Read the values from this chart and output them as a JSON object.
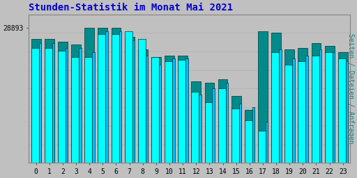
{
  "title": "Stunden-Statistik im Monat Mai 2021",
  "title_color": "#0000CC",
  "ylabel_right": "Seiten / Dateien / Anfragen",
  "ylabel_color": "#008888",
  "background_color": "#C0C0C0",
  "plot_bg_color": "#C0C0C0",
  "x_labels": [
    "0",
    "1",
    "2",
    "3",
    "4",
    "5",
    "6",
    "7",
    "8",
    "9",
    "10",
    "11",
    "12",
    "13",
    "14",
    "15",
    "16",
    "17",
    "18",
    "19",
    "20",
    "21",
    "22",
    "23"
  ],
  "seiten": [
    27600,
    27600,
    27400,
    27000,
    27000,
    28500,
    28500,
    28700,
    28200,
    27000,
    26700,
    26800,
    24700,
    24000,
    24900,
    23600,
    22800,
    22100,
    27300,
    26500,
    26700,
    27100,
    27300,
    26900
  ],
  "dateien": [
    28200,
    28200,
    28000,
    27800,
    28893,
    28893,
    28893,
    28300,
    27500,
    27000,
    27100,
    27100,
    25400,
    25300,
    25500,
    24400,
    23500,
    28700,
    28600,
    27500,
    27600,
    27900,
    27700,
    27300
  ],
  "anfragen": [
    27900,
    27900,
    27600,
    27600,
    27300,
    28700,
    28700,
    28100,
    27100,
    26500,
    26900,
    26900,
    24500,
    24900,
    25300,
    23900,
    23700,
    22700,
    27500,
    26900,
    27100,
    27500,
    27300,
    26700
  ],
  "color_seiten": "#00FFFF",
  "color_dateien": "#008B8B",
  "color_anfragen": "#00BFFF",
  "bar_edge_color": "#003333",
  "ylim_min": 20000,
  "ylim_max": 29800,
  "ytick_val": 28893,
  "ytick_label": "28893",
  "grid_color": "#B0B0B0",
  "font_family": "monospace",
  "title_fontsize": 10,
  "tick_fontsize": 7
}
